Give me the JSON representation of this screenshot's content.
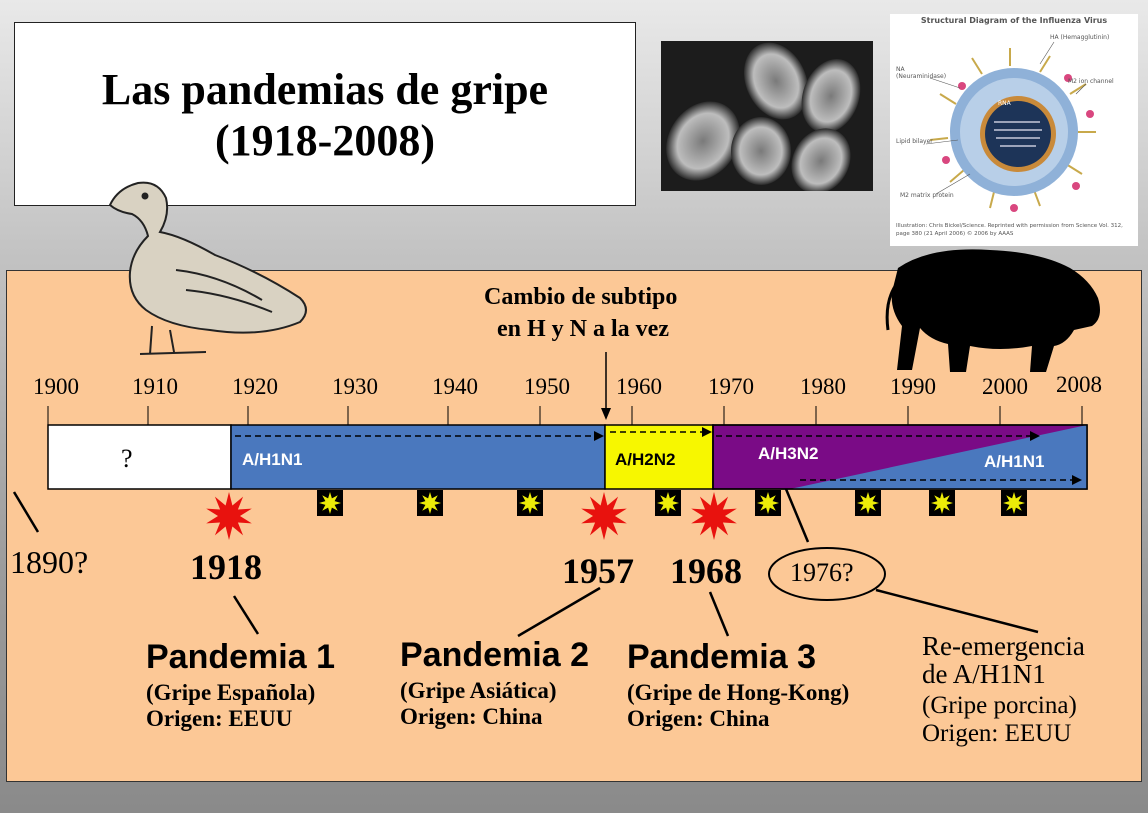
{
  "title": {
    "line1": "Las pandemias de gripe",
    "line2": "(1918-2008)"
  },
  "virus_diagram": {
    "title": "Structural Diagram of the Influenza Virus",
    "labels": {
      "ha": "HA (Hemagglutinin)",
      "na": "NA\n(Neuraminidase)",
      "m2": "M2 ion channel",
      "lipid": "Lipid bilayer",
      "matrix": "M2 matrix protein",
      "rna": "RNA"
    },
    "credit": "Illustration: Chris Bickel/Science. Reprinted with permission from Science Vol. 312, page 380 (21 April 2006) © 2006 by AAAS"
  },
  "annotation": {
    "line1": "Cambio de subtipo",
    "line2": "en H y N a la vez"
  },
  "timeline": {
    "ticks": [
      "1900",
      "1910",
      "1920",
      "1930",
      "1940",
      "1950",
      "1960",
      "1970",
      "1980",
      "1990",
      "2000",
      "2008"
    ],
    "unknown": "?",
    "segments": {
      "h1n1": "A/H1N1",
      "h2n2": "A/H2N2",
      "h3n2": "A/H3N2",
      "h1n1_new": "A/H1N1"
    }
  },
  "colors": {
    "panel": "#fcc896",
    "h1n1": "#4a78be",
    "h2n2": "#f7f700",
    "h3n2": "#7a0b86",
    "pandemic_star": "#e8120e",
    "minor_star": "#ecec08"
  },
  "events": {
    "y1890": "1890?",
    "y1918": "1918",
    "y1957": "1957",
    "y1968": "1968",
    "y1976": "1976?"
  },
  "pandemics": [
    {
      "name": "Pandemia 1",
      "alias": "(Gripe Española)",
      "origin": "Origen: EEUU"
    },
    {
      "name": "Pandemia 2",
      "alias": "(Gripe Asiática)",
      "origin": "Origen: China"
    },
    {
      "name": "Pandemia 3",
      "alias": "(Gripe de Hong-Kong)",
      "origin": "Origen: China"
    }
  ],
  "reemergence": {
    "line1": "Re-emergencia",
    "line2": "de A/H1N1",
    "line3": "(Gripe porcina)",
    "line4": "Origen: EEUU"
  }
}
